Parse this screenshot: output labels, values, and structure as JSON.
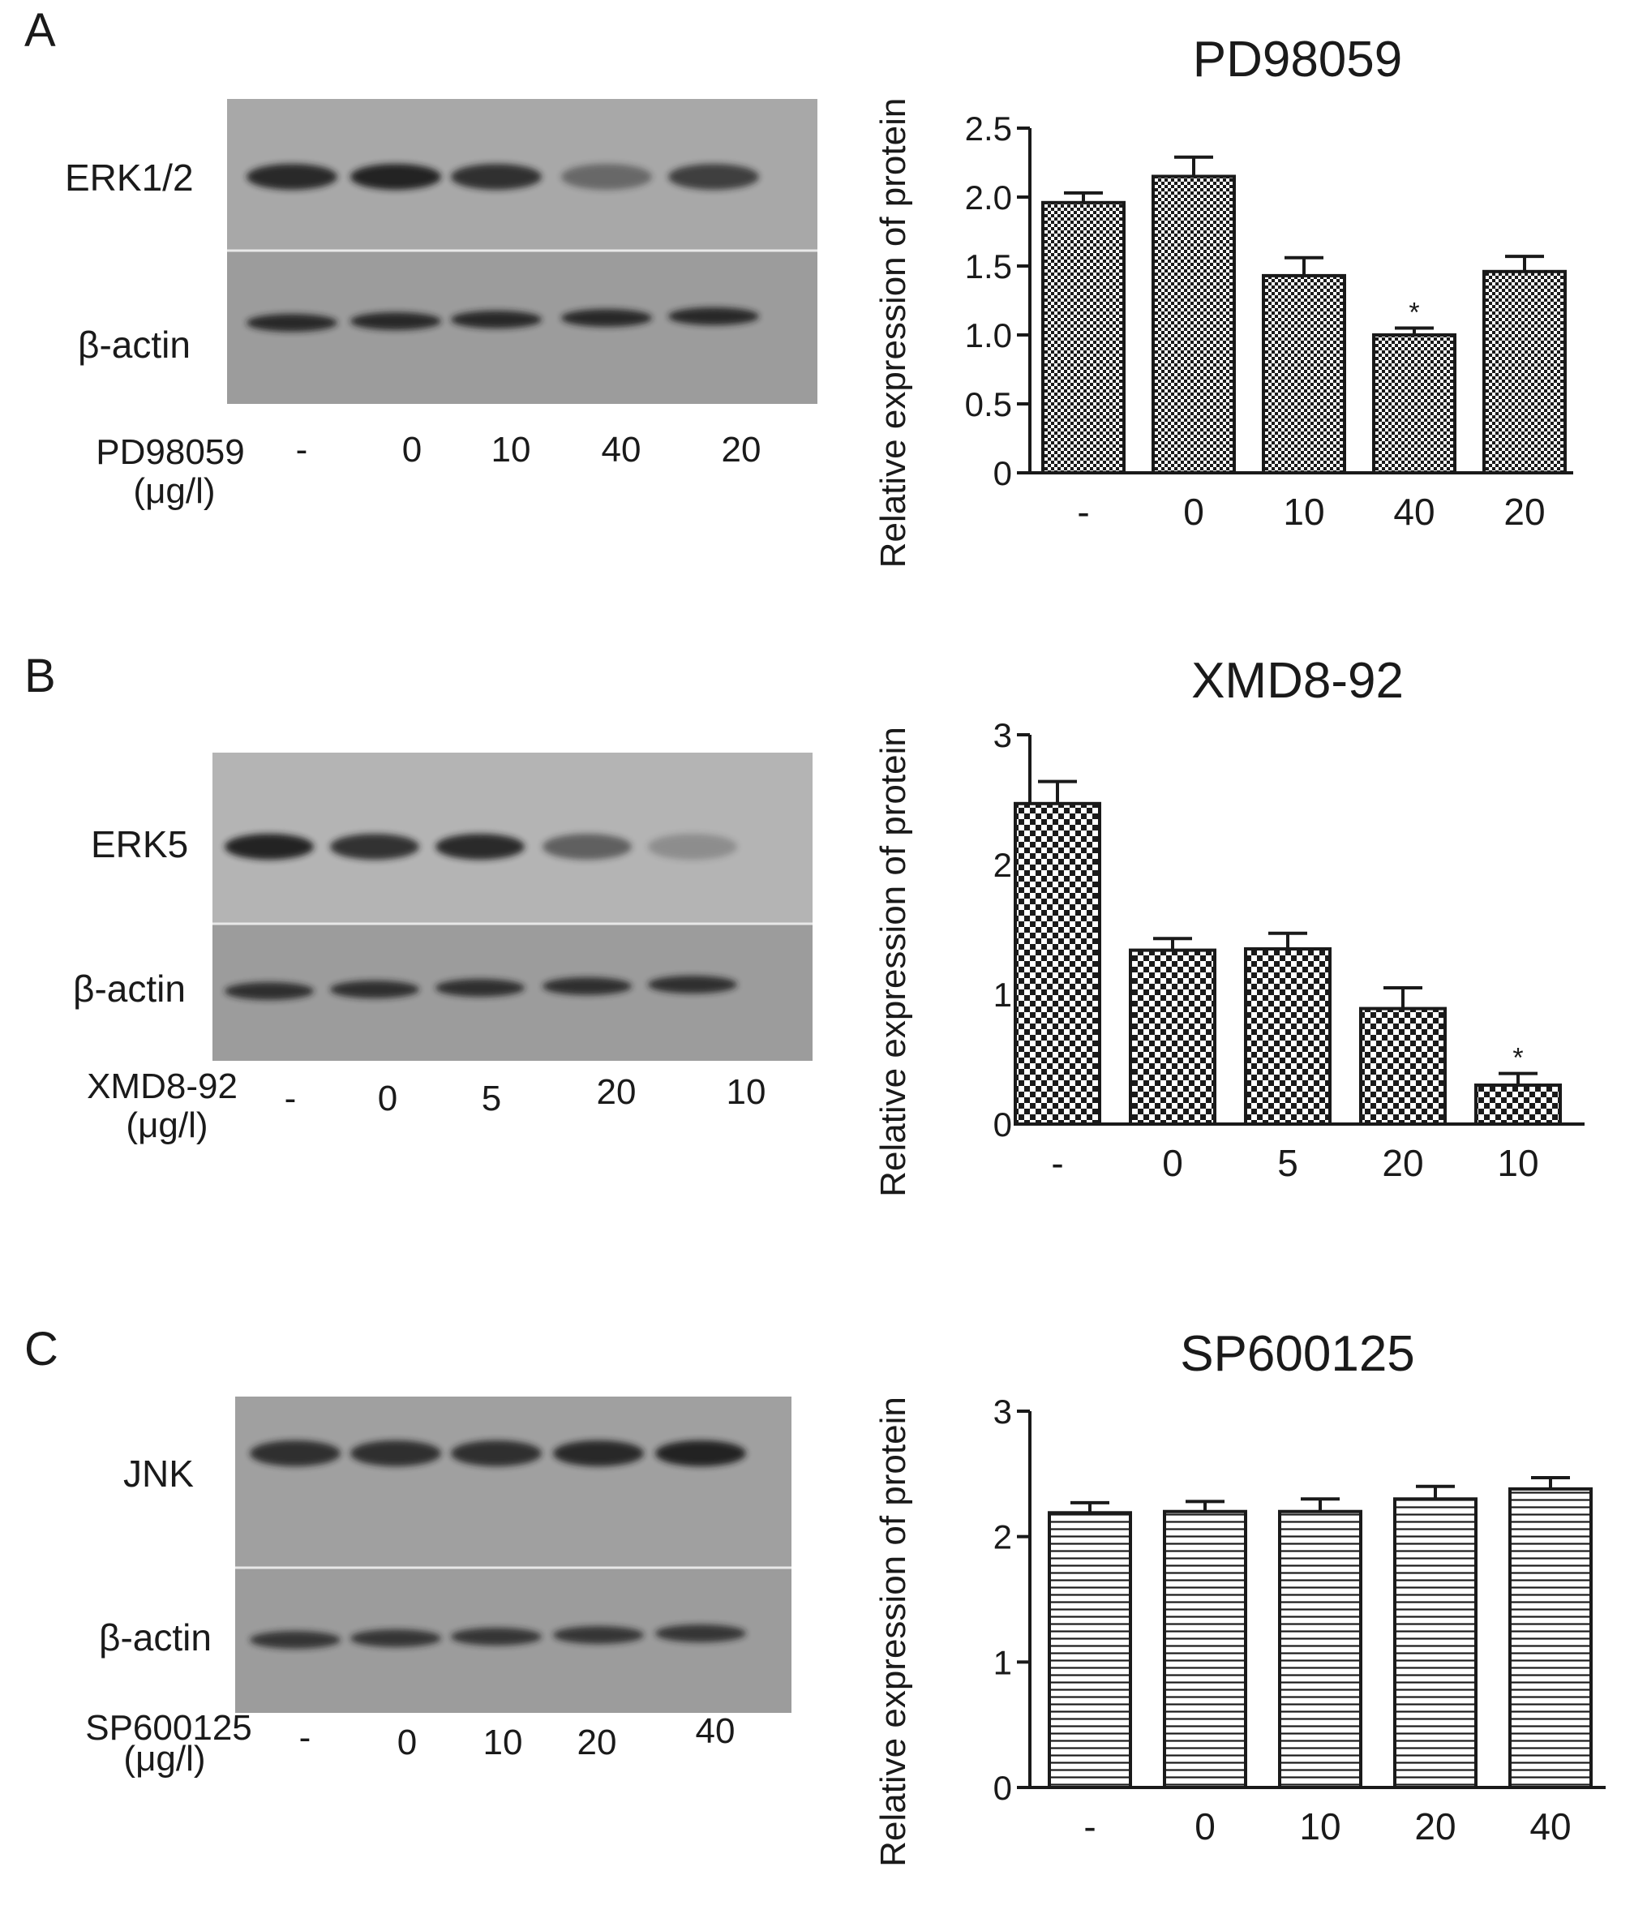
{
  "panels": [
    {
      "letter": "A",
      "blot": {
        "target_label": "ERK1/2",
        "control_label": "β-actin",
        "treatment_name": "PD98059",
        "treatment_unit": "(μg/l)",
        "lane_labels": [
          "-",
          "0",
          "10",
          "40",
          "20"
        ],
        "target_band_intensity": [
          0.9,
          0.95,
          0.85,
          0.45,
          0.75
        ],
        "control_band_intensity": [
          0.9,
          0.9,
          0.9,
          0.9,
          0.9
        ],
        "membrane_color": "#a8a8a8"
      }
    },
    {
      "letter": "B",
      "blot": {
        "target_label": "ERK5",
        "control_label": "β-actin",
        "treatment_name": "XMD8-92",
        "treatment_unit": "(μg/l)",
        "lane_labels": [
          "-",
          "0",
          "5",
          "20",
          "10"
        ],
        "target_band_intensity": [
          0.95,
          0.85,
          0.9,
          0.55,
          0.25
        ],
        "control_band_intensity": [
          0.85,
          0.85,
          0.85,
          0.85,
          0.85
        ],
        "membrane_color": "#b4b4b4"
      }
    },
    {
      "letter": "C",
      "blot": {
        "target_label": "JNK",
        "control_label": "β-actin",
        "treatment_name": "SP600125",
        "treatment_unit": "(μg/l)",
        "lane_labels": [
          "-",
          "0",
          "10",
          "20",
          "40"
        ],
        "target_band_intensity": [
          0.85,
          0.85,
          0.85,
          0.9,
          0.95
        ],
        "control_band_intensity": [
          0.8,
          0.8,
          0.8,
          0.8,
          0.8
        ],
        "membrane_color": "#a0a0a0"
      }
    }
  ],
  "chart_data": [
    {
      "type": "bar",
      "title": "PD98059",
      "ylabel": "Relative expression of protein",
      "xlabel": "",
      "categories": [
        "-",
        "0",
        "10",
        "40",
        "20"
      ],
      "values": [
        1.96,
        2.15,
        1.43,
        1.0,
        1.46
      ],
      "errors": [
        0.07,
        0.14,
        0.13,
        0.05,
        0.11
      ],
      "significance": [
        "",
        "",
        "",
        "*",
        ""
      ],
      "ylim": [
        0,
        2.5
      ],
      "yticks": [
        "0",
        "0.5",
        "1.0",
        "1.5",
        "2.0",
        "2.5"
      ],
      "pattern": "checker-fine"
    },
    {
      "type": "bar",
      "title": "XMD8-92",
      "ylabel": "Relative expression of protein",
      "xlabel": "",
      "categories": [
        "-",
        "0",
        "5",
        "20",
        "10"
      ],
      "values": [
        2.47,
        1.34,
        1.35,
        0.89,
        0.3
      ],
      "errors": [
        0.17,
        0.09,
        0.12,
        0.16,
        0.09
      ],
      "significance": [
        "",
        "",
        "",
        "",
        "*"
      ],
      "ylim": [
        0,
        3
      ],
      "yticks": [
        "0",
        "1",
        "2",
        "3"
      ],
      "pattern": "checker-coarse"
    },
    {
      "type": "bar",
      "title": "SP600125",
      "ylabel": "Relative expression of protein",
      "xlabel": "",
      "categories": [
        "-",
        "0",
        "10",
        "20",
        "40"
      ],
      "values": [
        2.19,
        2.2,
        2.2,
        2.3,
        2.38
      ],
      "errors": [
        0.08,
        0.08,
        0.1,
        0.1,
        0.09
      ],
      "significance": [
        "",
        "",
        "",
        "",
        ""
      ],
      "ylim": [
        0,
        3
      ],
      "yticks": [
        "0",
        "1",
        "2",
        "3"
      ],
      "pattern": "horizontal-lines"
    }
  ]
}
